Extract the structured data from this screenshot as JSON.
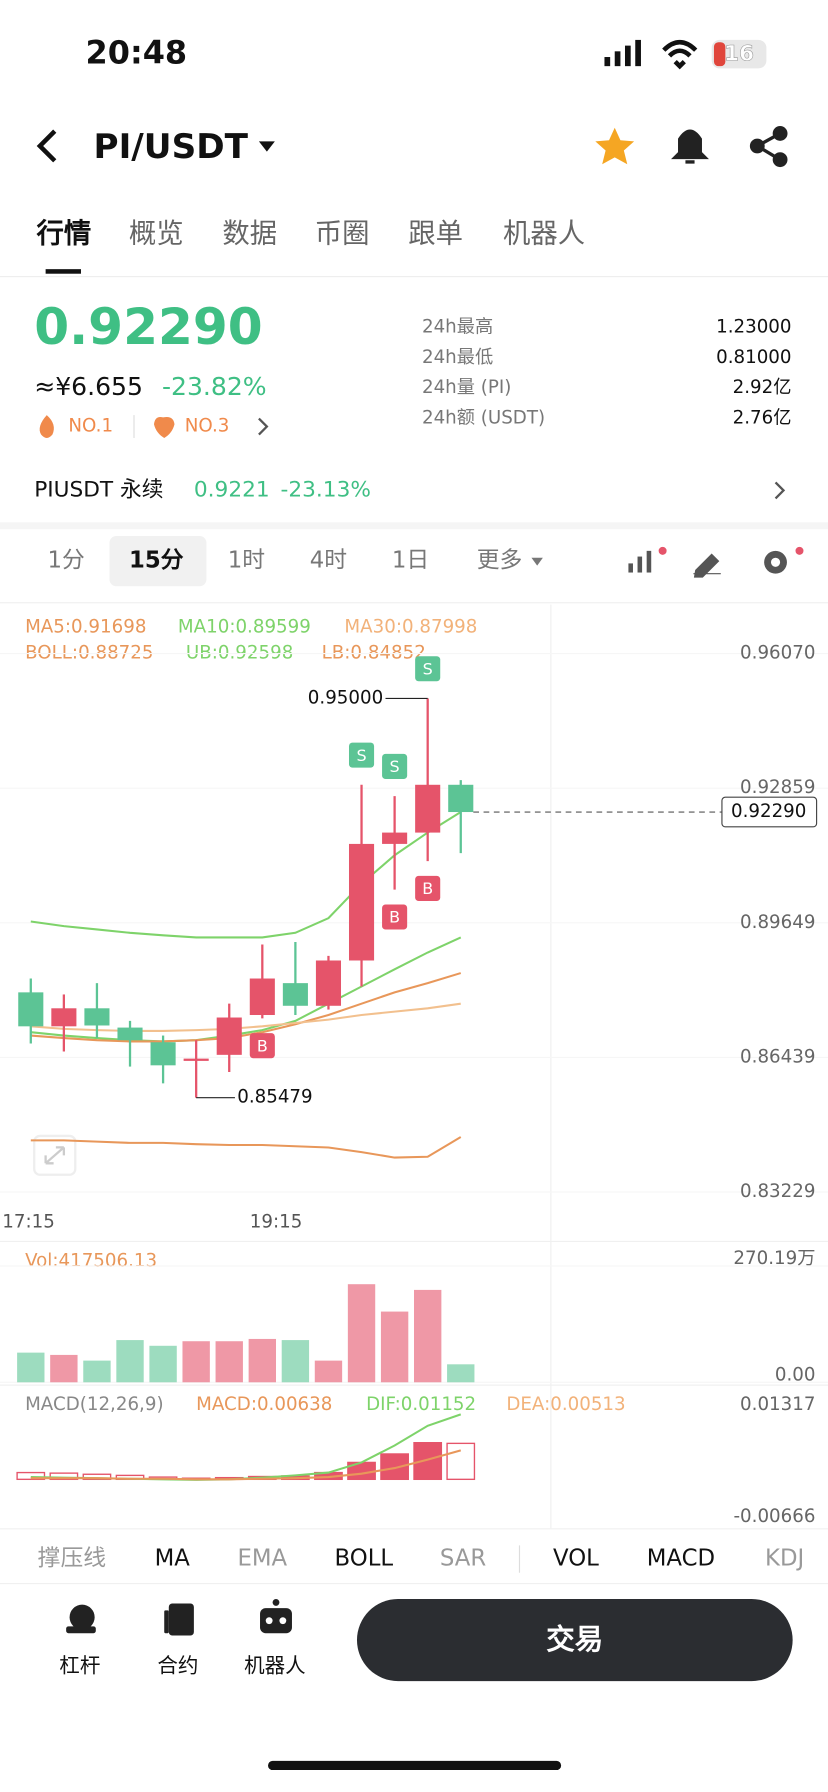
{
  "status_bar": {
    "time": "20:48",
    "battery": "16"
  },
  "header": {
    "pair": "PI/USDT"
  },
  "tabs": [
    "行情",
    "概览",
    "数据",
    "币圈",
    "跟单",
    "机器人"
  ],
  "price": {
    "last": "0.92290",
    "cny": "≈¥6.655",
    "change": "-23.82%",
    "rank1": "NO.1",
    "rank2": "NO.3"
  },
  "stats": [
    {
      "label": "24h最高",
      "value": "1.23000"
    },
    {
      "label": "24h最低",
      "value": "0.81000"
    },
    {
      "label": "24h量 (PI)",
      "value": "2.92亿"
    },
    {
      "label": "24h额 (USDT)",
      "value": "2.76亿"
    }
  ],
  "perpetual": {
    "name": "PIUSDT 永续",
    "price": "0.9221",
    "change": "-23.13%"
  },
  "intervals": [
    "1分",
    "15分",
    "1时",
    "4时",
    "1日",
    "更多"
  ],
  "kline": {
    "legend": [
      "MA5:0.91698",
      "MA10:0.89599",
      "MA30:0.87998",
      "BOLL:0.88725",
      "UB:0.92598",
      "LB:0.84852"
    ],
    "ylim": [
      0.8288,
      0.9724
    ],
    "yticks": [
      {
        "value": 0.9607,
        "label": "0.96070"
      },
      {
        "value": 0.92859,
        "label": "0.92859"
      },
      {
        "value": 0.89649,
        "label": "0.89649"
      },
      {
        "value": 0.86439,
        "label": "0.86439"
      },
      {
        "value": 0.83229,
        "label": "0.83229"
      }
    ],
    "up_color": "#e5546a",
    "down_color": "#5cc495",
    "candles": [
      {
        "open": 0.8799,
        "high": 0.8832,
        "low": 0.8677,
        "close": 0.8718
      },
      {
        "open": 0.8718,
        "high": 0.8794,
        "low": 0.8658,
        "close": 0.8761
      },
      {
        "open": 0.8761,
        "high": 0.8821,
        "low": 0.869,
        "close": 0.872
      },
      {
        "open": 0.8715,
        "high": 0.8731,
        "low": 0.8622,
        "close": 0.8685
      },
      {
        "open": 0.868,
        "high": 0.8696,
        "low": 0.8582,
        "close": 0.8625
      },
      {
        "open": 0.8636,
        "high": 0.8685,
        "low": 0.85479,
        "close": 0.8641
      },
      {
        "open": 0.865,
        "high": 0.8772,
        "low": 0.8609,
        "close": 0.8739
      },
      {
        "open": 0.8745,
        "high": 0.8913,
        "low": 0.8737,
        "close": 0.8832
      },
      {
        "open": 0.8821,
        "high": 0.8919,
        "low": 0.8745,
        "close": 0.8767
      },
      {
        "open": 0.8767,
        "high": 0.8886,
        "low": 0.8758,
        "close": 0.8875
      },
      {
        "open": 0.8875,
        "high": 0.9294,
        "low": 0.8813,
        "close": 0.9153
      },
      {
        "open": 0.9153,
        "high": 0.9267,
        "low": 0.9044,
        "close": 0.918
      },
      {
        "open": 0.918,
        "high": 0.95,
        "low": 0.9112,
        "close": 0.9294
      },
      {
        "open": 0.9294,
        "high": 0.9305,
        "low": 0.9131,
        "close": 0.9229
      }
    ],
    "lines": [
      {
        "color": "#7ed36a",
        "values": [
          0.8968,
          0.8957,
          0.8949,
          0.8941,
          0.8935,
          0.893,
          0.893,
          0.893,
          0.8941,
          0.8976,
          0.9058,
          0.9126,
          0.918,
          0.9229
        ]
      },
      {
        "color": "#7ed36a",
        "values": [
          0.8704,
          0.8696,
          0.869,
          0.8685,
          0.8682,
          0.8685,
          0.8696,
          0.8709,
          0.8731,
          0.8772,
          0.8813,
          0.8854,
          0.8894,
          0.893
        ]
      },
      {
        "color": "#e8975a",
        "values": [
          0.8696,
          0.869,
          0.8685,
          0.8682,
          0.8682,
          0.8685,
          0.869,
          0.8704,
          0.8723,
          0.8745,
          0.8772,
          0.8799,
          0.8821,
          0.8845
        ]
      },
      {
        "color": "#f2c08e",
        "values": [
          0.8718,
          0.8712,
          0.8709,
          0.8707,
          0.8707,
          0.8709,
          0.8712,
          0.8718,
          0.8726,
          0.8734,
          0.8745,
          0.8753,
          0.8761,
          0.8772
        ]
      },
      {
        "color": "#e8975a",
        "values": [
          0.8446,
          0.8446,
          0.8443,
          0.844,
          0.844,
          0.8437,
          0.8435,
          0.8435,
          0.8432,
          0.8429,
          0.8418,
          0.8405,
          0.8407,
          0.8454
        ]
      }
    ],
    "high_label": "0.95000",
    "high_candle": 12,
    "low_label": "0.85479",
    "low_candle": 5,
    "markers": [
      {
        "text": "S",
        "candle": 10
      },
      {
        "text": "S",
        "candle": 11
      },
      {
        "text": "S",
        "candle": 12
      },
      {
        "text": "B",
        "candle": 7
      },
      {
        "text": "B",
        "candle": 11
      },
      {
        "text": "B",
        "candle": 12
      }
    ],
    "time_labels": [
      "17:15",
      "19:15"
    ]
  },
  "volume": {
    "legend": "Vol:417506.13",
    "ylim": [
      0,
      3099300
    ],
    "yticks": [
      {
        "value": 2701900,
        "label": "270.19万"
      },
      {
        "value": 0,
        "label": "0.00"
      }
    ],
    "values": [
      688700,
      635700,
      503300,
      980100,
      847700,
      953600,
      953600,
      1006600,
      980100,
      503300,
      2278000,
      1642300,
      2145600,
      417506.13
    ]
  },
  "macd": {
    "legend": [
      "MACD(12,26,9)",
      "MACD:0.00638",
      "DIF:0.01152",
      "DEA:0.00513"
    ],
    "ylim": [
      -0.00767,
      0.0156
    ],
    "yticks": [
      {
        "value": 0.01317,
        "label": "0.01317"
      },
      {
        "value": -0.00666,
        "label": "-0.00666"
      }
    ],
    "bars": [
      0.0012,
      0.0011,
      0.0009,
      0.0007,
      0.0004,
      0.0002,
      0.0003,
      0.0005,
      0.0006,
      0.0012,
      0.003,
      0.0045,
      0.0065,
      0.00638
    ],
    "dif": [
      0.0004,
      0.0003,
      0.0002,
      0.0001,
      0,
      -0.0001,
      0,
      0.0003,
      0.0007,
      0.0012,
      0.003,
      0.006,
      0.0095,
      0.01152
    ],
    "dea": [
      0.0002,
      0.0002,
      0.0002,
      0.0001,
      0.0001,
      0,
      0,
      0.0001,
      0.0002,
      0.0004,
      0.001,
      0.002,
      0.0035,
      0.00513
    ],
    "dif_color": "#7ed36a",
    "dea_color": "#e8975a"
  },
  "indicator_tabs": [
    "撑压线",
    "MA",
    "EMA",
    "BOLL",
    "SAR",
    "VOL",
    "MACD",
    "KDJ"
  ],
  "bottom_nav": [
    "杠杆",
    "合约",
    "机器人"
  ],
  "trade_button": "交易"
}
